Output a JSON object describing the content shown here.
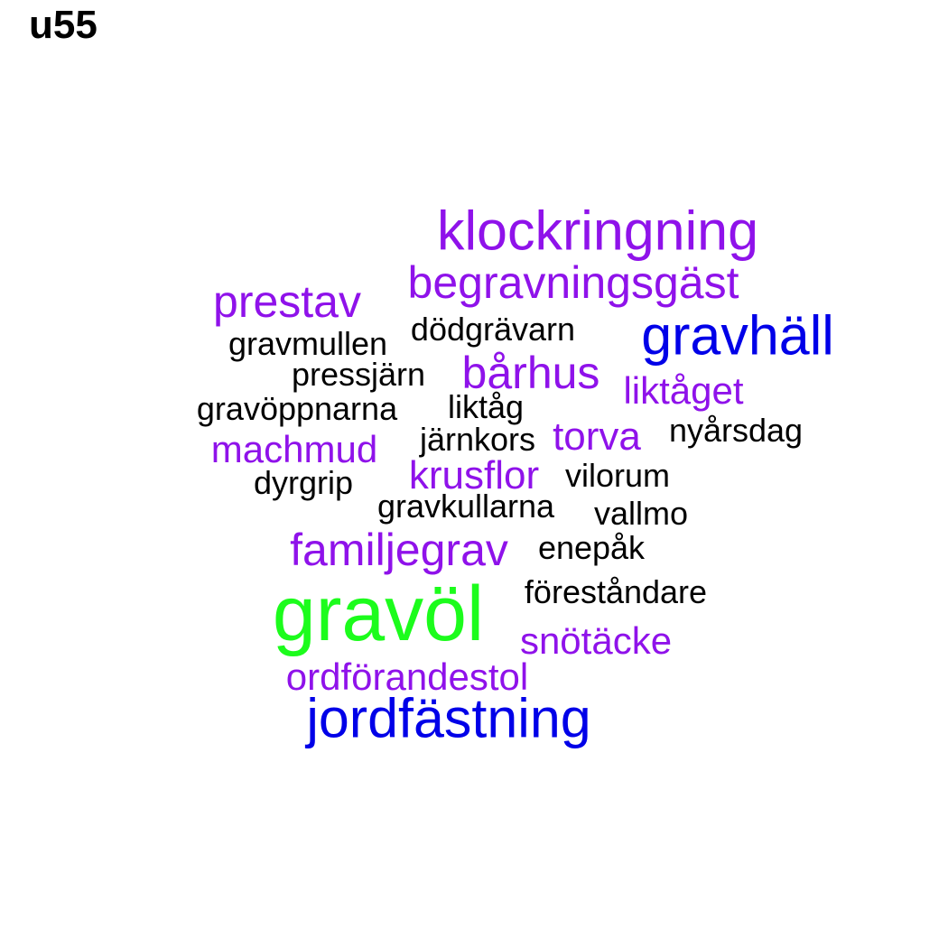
{
  "title": "u55",
  "colors": {
    "black": "#000000",
    "purple": "#8f12ea",
    "blue": "#0000e8",
    "green": "#1cfc1c"
  },
  "words": {
    "klockringning": "klockringning",
    "begravningsgast": "begravningsgäst",
    "prestav": "prestav",
    "gravhall": "gravhäll",
    "dodgravarn": "dödgrävarn",
    "gravmullen": "gravmullen",
    "barhus": "bårhus",
    "pressjarn": "pressjärn",
    "liktaget": "liktåget",
    "gravoppnarna": "gravöppnarna",
    "liktag": "liktåg",
    "nyarsdag": "nyårsdag",
    "jarnkors": "järnkors",
    "torva": "torva",
    "machmud": "machmud",
    "krusflor": "krusflor",
    "vilorum": "vilorum",
    "dyrgrip": "dyrgrip",
    "gravkullarna": "gravkullarna",
    "vallmo": "vallmo",
    "familjegrav": "familjegrav",
    "enepak": "enepåk",
    "forestandare": "föreståndare",
    "gravol": "gravöl",
    "snotacke": "snötäcke",
    "ordforandestol": "ordförandestol",
    "jordfastning": "jordfästning"
  }
}
